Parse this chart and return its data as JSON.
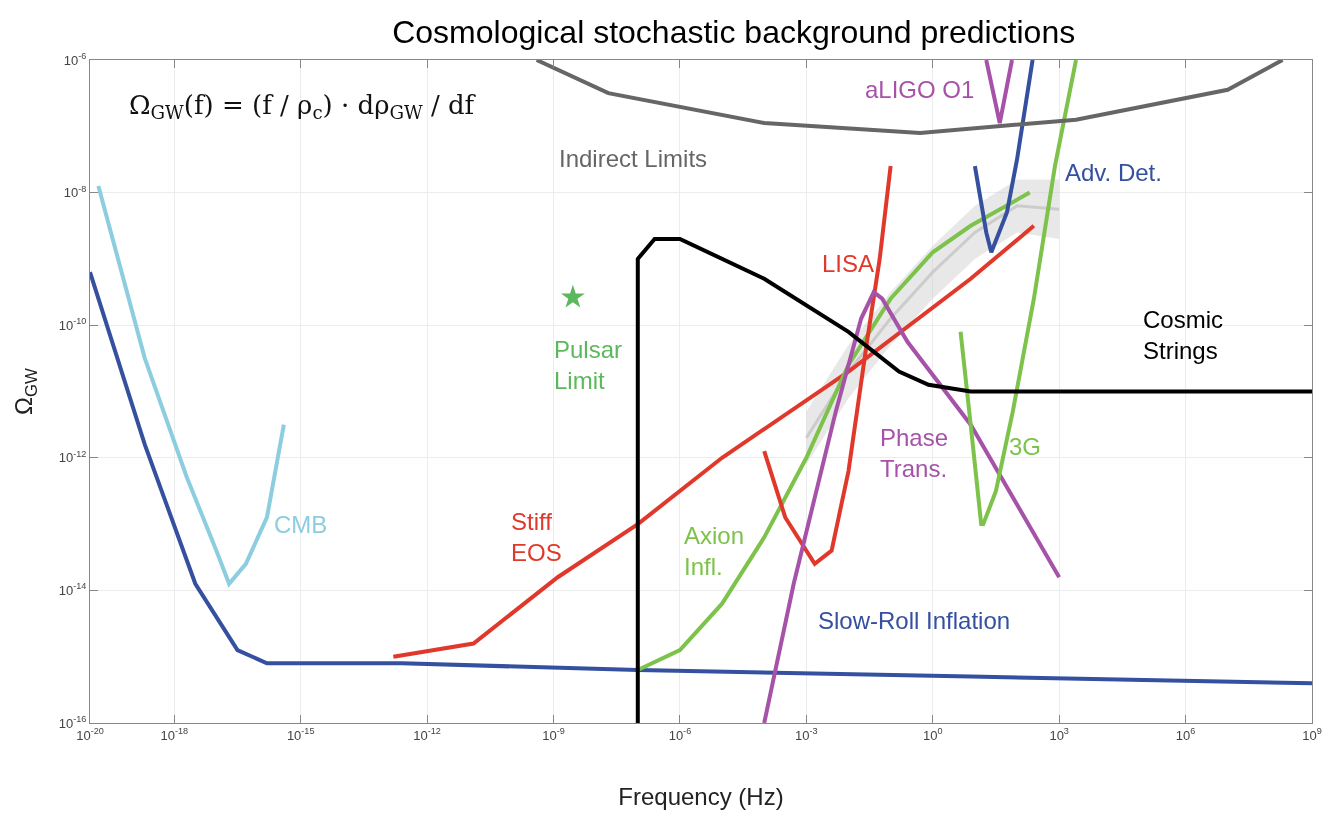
{
  "chart_data": {
    "type": "line",
    "title": "Cosmological stochastic background predictions",
    "xlabel": "Frequency (Hz)",
    "ylabel": "Ω$_{GW}$",
    "log": "xy",
    "grid": true,
    "marker": "none",
    "line_style": "solid",
    "xlim": [
      1e-20,
      1000000000.0
    ],
    "ylim": [
      1e-16,
      1e-06
    ],
    "xticks": [
      {
        "value": 1e-20,
        "label": "10$^{-20}$"
      },
      {
        "value": 1e-18,
        "label": "10$^{-18}$"
      },
      {
        "value": 1e-15,
        "label": "10$^{-15}$"
      },
      {
        "value": 1e-12,
        "label": "10$^{-12}$"
      },
      {
        "value": 1e-09,
        "label": "10$^{-9}$"
      },
      {
        "value": 1e-06,
        "label": "10$^{-6}$"
      },
      {
        "value": 0.001,
        "label": "10$^{-3}$"
      },
      {
        "value": 1,
        "label": "10$^{0}$"
      },
      {
        "value": 1000.0,
        "label": "10$^{3}$"
      },
      {
        "value": 1000000.0,
        "label": "10$^{6}$"
      },
      {
        "value": 1000000000.0,
        "label": "10$^{9}$"
      }
    ],
    "yticks": [
      {
        "value": 1e-16,
        "label": "10$^{-16}$"
      },
      {
        "value": 1e-14,
        "label": "10$^{-14}$"
      },
      {
        "value": 1e-12,
        "label": "10$^{-12}$"
      },
      {
        "value": 1e-10,
        "label": "10$^{-10}$"
      },
      {
        "value": 1e-08,
        "label": "10$^{-8}$"
      },
      {
        "value": 1e-06,
        "label": "10$^{-6}$"
      }
    ],
    "series": [
      {
        "color": "#8ccde0",
        "x": [
          1.58e-20,
          2e-19,
          2e-18,
          1e-17,
          2e-17,
          5e-17,
          1.58e-16,
          3.98e-16
        ],
        "values": [
          1.26e-08,
          3.16e-11,
          5.01e-13,
          3.98e-14,
          1.26e-14,
          2.51e-14,
          1.26e-13,
          3.16e-12
        ]
      },
      {
        "color": "#34509f",
        "x": [
          1e-20,
          2e-19,
          3.16e-18,
          3.16e-17,
          1.58e-16,
          2.51e-13,
          1e-07,
          7.94,
          1000000000.0
        ],
        "values": [
          6.31e-10,
          1.58e-12,
          1.26e-14,
          1.26e-15,
          7.94e-16,
          7.94e-16,
          6.31e-16,
          5.01e-16,
          3.98e-16
        ]
      },
      {
        "color": "#e0392b",
        "x": [
          1.58e-13,
          1.26e-11,
          1.26e-09,
          1e-07,
          1e-05,
          0.01,
          7.94,
          251
        ],
        "values": [
          1e-15,
          1.58e-15,
          1.58e-14,
          1e-13,
          1e-12,
          2e-11,
          5.01e-10,
          3.16e-09
        ]
      },
      {
        "color": "#7dc24b",
        "x": [
          1e-07,
          1e-06,
          1e-05,
          0.0001,
          0.001,
          0.01,
          0.1,
          1,
          7.94,
          200
        ],
        "values": [
          6.31e-16,
          1.26e-15,
          6.31e-15,
          6.31e-14,
          1e-12,
          2.51e-11,
          2.51e-10,
          1.26e-09,
          3.16e-09,
          1e-08
        ]
      },
      {
        "color": "#e0392b",
        "x": [
          0.0001,
          0.000316,
          0.00158,
          0.00398,
          0.01,
          0.0282,
          0.055,
          0.1
        ],
        "values": [
          1.26e-12,
          1.26e-13,
          2.51e-14,
          3.98e-14,
          6.31e-13,
          6.31e-11,
          1e-09,
          2.51e-08
        ]
      },
      {
        "color": "#a652a8",
        "x": [
          0.0001,
          0.000501,
          0.00501,
          0.02,
          0.0398,
          0.0631,
          0.251,
          7.94,
          1000
        ],
        "values": [
          1e-16,
          1.26e-14,
          5.01e-12,
          1.26e-10,
          3.16e-10,
          2.51e-10,
          5.62e-11,
          3.16e-12,
          1.58e-14
        ]
      },
      {
        "color": "#7dc24b",
        "x": [
          4.57,
          7.94,
          14.1,
          15.8,
          31.6,
          79.4,
          251,
          794,
          2510
        ],
        "values": [
          7.94e-11,
          3.16e-12,
          1e-13,
          1e-13,
          3.16e-13,
          5.01e-12,
          2.51e-10,
          2.51e-08,
          1e-06
        ]
      },
      {
        "color": "#000000",
        "x": [
          1e-07,
          1e-07,
          2.51e-07,
          1e-06,
          0.0001,
          0.01,
          0.158,
          0.794,
          7.94,
          1000000000.0
        ],
        "values": [
          1e-16,
          1e-09,
          2e-09,
          2e-09,
          5.01e-10,
          7.94e-11,
          2e-11,
          1.26e-11,
          1e-11,
          1e-11
        ]
      },
      {
        "color": "#34509f",
        "x": [
          10,
          18.6,
          24.5,
          57.5,
          100,
          234
        ],
        "values": [
          2.51e-08,
          2.51e-09,
          1.26e-09,
          5.01e-09,
          3.16e-08,
          1e-06
        ]
      },
      {
        "color": "#a652a8",
        "x": [
          18.6,
          38.9,
          75.9
        ],
        "values": [
          1e-06,
          1.12e-07,
          1e-06
        ]
      },
      {
        "color": "#666666",
        "x": [
          3.98e-10,
          2e-08,
          0.0001,
          0.501,
          2510,
          10000000.0,
          200000000.0
        ],
        "values": [
          1e-06,
          3.16e-07,
          1.12e-07,
          7.94e-08,
          1.26e-07,
          3.55e-07,
          1e-06
        ]
      },
      {
        "color": "#5cb85c",
        "type": "scatter",
        "marker": "star",
        "x": [
          2.88e-09
        ],
        "values": [
          2.63e-10
        ]
      },
      {
        "color": "#cccccc",
        "x": [
          0.001,
          0.01,
          0.1,
          1,
          10,
          100,
          1000
        ],
        "values": [
          2e-12,
          2e-11,
          1.26e-10,
          6.31e-10,
          2.51e-09,
          6.31e-09,
          5.62e-09
        ],
        "lower": [
          7.94e-13,
          7.94e-12,
          5.01e-11,
          2.51e-10,
          1e-09,
          2.51e-09,
          2e-09
        ],
        "upper": [
          5.01e-12,
          5.01e-11,
          3.16e-10,
          1.58e-09,
          6.31e-09,
          1.58e-08,
          1.58e-08
        ]
      }
    ],
    "annotations": [
      "CMB",
      "Slow-Roll Inflation",
      "Stiff\nEOS",
      "Axion\nInfl.",
      "LISA",
      "Phase\nTrans.",
      "3G",
      "Cosmic\nStrings",
      "Adv. Det.",
      "aLIGO O1",
      "Indirect Limits",
      "Pulsar\nLimit",
      "Ω$_{GW}$(f) = (f / ρ$_{c}$) · dρ$_{GW}$ / df"
    ]
  }
}
